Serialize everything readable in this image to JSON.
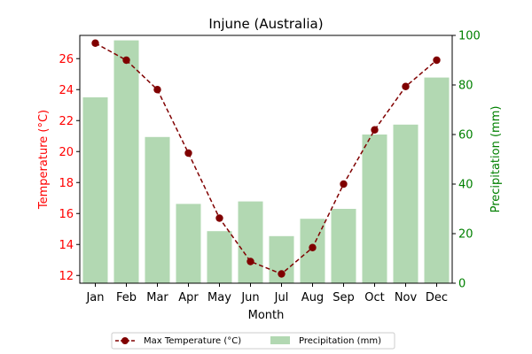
{
  "chart_data": {
    "type": "bar+line",
    "title": "Injune (Australia)",
    "xlabel": "Month",
    "categories": [
      "Jan",
      "Feb",
      "Mar",
      "Apr",
      "May",
      "Jun",
      "Jul",
      "Aug",
      "Sep",
      "Oct",
      "Nov",
      "Dec"
    ],
    "left_axis": {
      "label": "Temperature (°C)",
      "color": "#ff0000",
      "ylim": [
        11.5,
        27.5
      ],
      "ticks": [
        12,
        14,
        16,
        18,
        20,
        22,
        24,
        26
      ]
    },
    "right_axis": {
      "label": "Precipitation (mm)",
      "color": "#008000",
      "ylim": [
        0,
        100
      ],
      "ticks": [
        0,
        20,
        40,
        60,
        80,
        100
      ]
    },
    "series": [
      {
        "name": "Max Temperature (°C)",
        "type": "line",
        "axis": "left",
        "color": "#800000",
        "values": [
          27.0,
          25.9,
          24.0,
          19.9,
          15.7,
          12.9,
          12.1,
          13.8,
          17.9,
          21.4,
          24.2,
          25.9
        ]
      },
      {
        "name": "Precipitation (mm)",
        "type": "bar",
        "axis": "right",
        "color": "#b2d8b2",
        "values": [
          75,
          98,
          59,
          32,
          21,
          33,
          19,
          26,
          30,
          60,
          64,
          83
        ]
      }
    ],
    "legend": "bottom-center",
    "grid": false
  }
}
